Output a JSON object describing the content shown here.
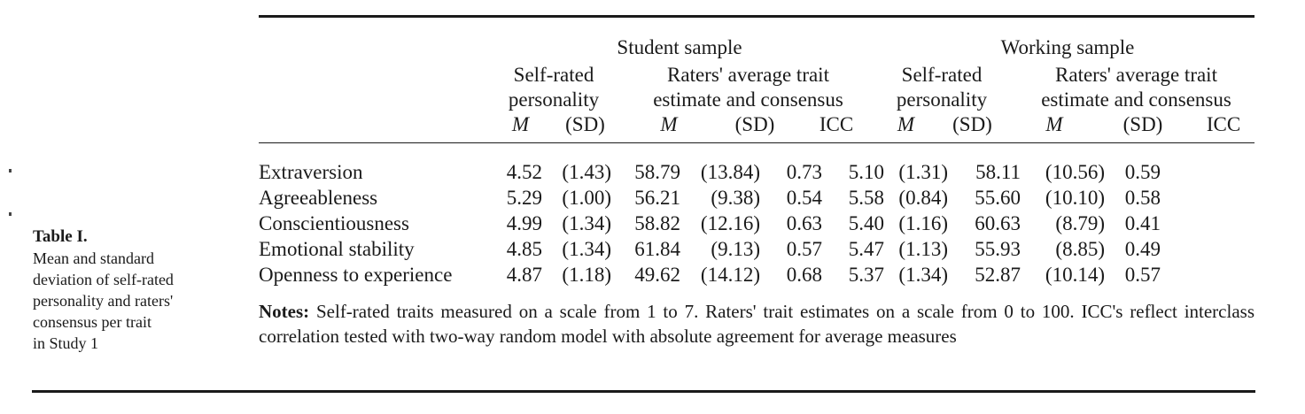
{
  "caption": {
    "title": "Table I.",
    "lines": [
      "Mean and standard",
      "deviation of self-rated",
      "personality and raters'",
      "consensus per trait",
      "in Study 1"
    ]
  },
  "header": {
    "student_sample": "Student sample",
    "working_sample": "Working sample",
    "self_rated_1": "Self-rated",
    "self_rated_2": "personality",
    "raters_1": "Raters' average trait",
    "raters_2": "estimate and consensus",
    "col_m": "M",
    "col_sd": "(SD)",
    "col_icc": "ICC"
  },
  "rows": [
    {
      "trait": "Extraversion",
      "values": [
        "4.52",
        "(1.43)",
        "58.79",
        "(13.84)",
        "0.73",
        "5.10",
        "(1.31)",
        "58.11",
        "(10.56)",
        "0.59"
      ]
    },
    {
      "trait": "Agreeableness",
      "values": [
        "5.29",
        "(1.00)",
        "56.21",
        "(9.38)",
        "0.54",
        "5.58",
        "(0.84)",
        "55.60",
        "(10.10)",
        "0.58"
      ]
    },
    {
      "trait": "Conscientiousness",
      "values": [
        "4.99",
        "(1.34)",
        "58.82",
        "(12.16)",
        "0.63",
        "5.40",
        "(1.16)",
        "60.63",
        "(8.79)",
        "0.41"
      ]
    },
    {
      "trait": "Emotional stability",
      "values": [
        "4.85",
        "(1.34)",
        "61.84",
        "(9.13)",
        "0.57",
        "5.47",
        "(1.13)",
        "55.93",
        "(8.85)",
        "0.49"
      ]
    },
    {
      "trait": "Openness to experience",
      "values": [
        "4.87",
        "(1.18)",
        "49.62",
        "(14.12)",
        "0.68",
        "5.37",
        "(1.34)",
        "52.87",
        "(10.14)",
        "0.57"
      ]
    }
  ],
  "notes": {
    "label": "Notes:",
    "text": "Self-rated traits measured on a scale from 1 to 7. Raters' trait estimates on a scale from 0 to 100. ICC's reflect interclass correlation tested with two-way random model with absolute agreement for average measures"
  }
}
